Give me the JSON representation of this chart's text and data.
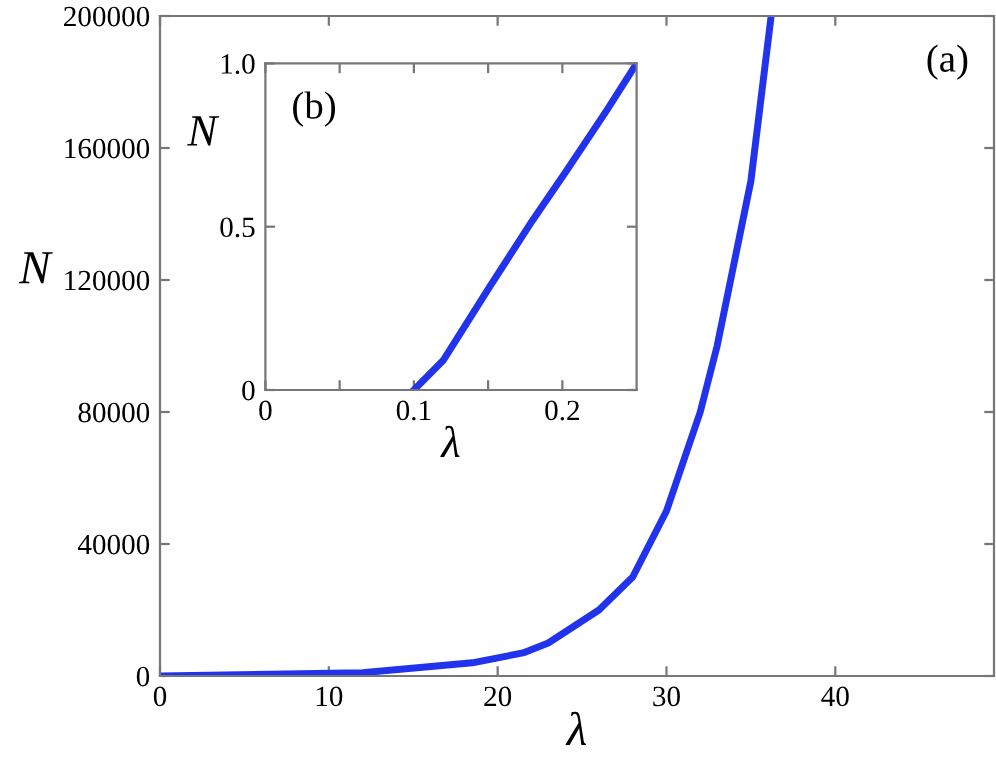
{
  "chart_data": [
    {
      "type": "line",
      "xlabel": "λ",
      "ylabel": "N",
      "annotations": [
        "(a)"
      ],
      "x": [
        0,
        12,
        18.5,
        21.5,
        23,
        26,
        28,
        30,
        32,
        33,
        35,
        36.2
      ],
      "series": [
        {
          "color": "#2233ee",
          "values": [
            0,
            1000,
            4000,
            7000,
            10000,
            20000,
            30000,
            50000,
            80000,
            100000,
            150000,
            200000
          ]
        }
      ],
      "xlim": [
        0,
        49.4
      ],
      "xticks": [
        0,
        10,
        20,
        30,
        40
      ],
      "ylim": [
        0,
        200000
      ],
      "yticks": [
        0,
        40000,
        80000,
        120000,
        160000,
        200000
      ],
      "grid": false,
      "legend": false,
      "marker": "none",
      "line_style": "solid"
    },
    {
      "type": "line",
      "xlabel": "λ",
      "ylabel": "N",
      "annotations": [
        "(b)"
      ],
      "x": [
        0.1,
        0.12,
        0.151,
        0.18,
        0.203,
        0.23,
        0.25
      ],
      "series": [
        {
          "color": "#2233ee",
          "values": [
            0,
            0.092,
            0.316,
            0.52,
            0.673,
            0.857,
            1.0
          ]
        }
      ],
      "xlim": [
        0,
        0.25
      ],
      "xticks": [
        0,
        {
          "value": 0.05,
          "label": null
        },
        {
          "value": 0.1,
          "label": "0.1"
        },
        {
          "value": 0.15,
          "label": null
        },
        {
          "value": 0.2,
          "label": "0.2"
        }
      ],
      "ylim": [
        0,
        1.0
      ],
      "yticks": [
        0,
        {
          "value": 0.5,
          "label": "0.5"
        },
        {
          "value": 1.0,
          "label": "1.0"
        }
      ],
      "grid": false,
      "legend": false,
      "marker": "none",
      "line_style": "solid"
    }
  ]
}
